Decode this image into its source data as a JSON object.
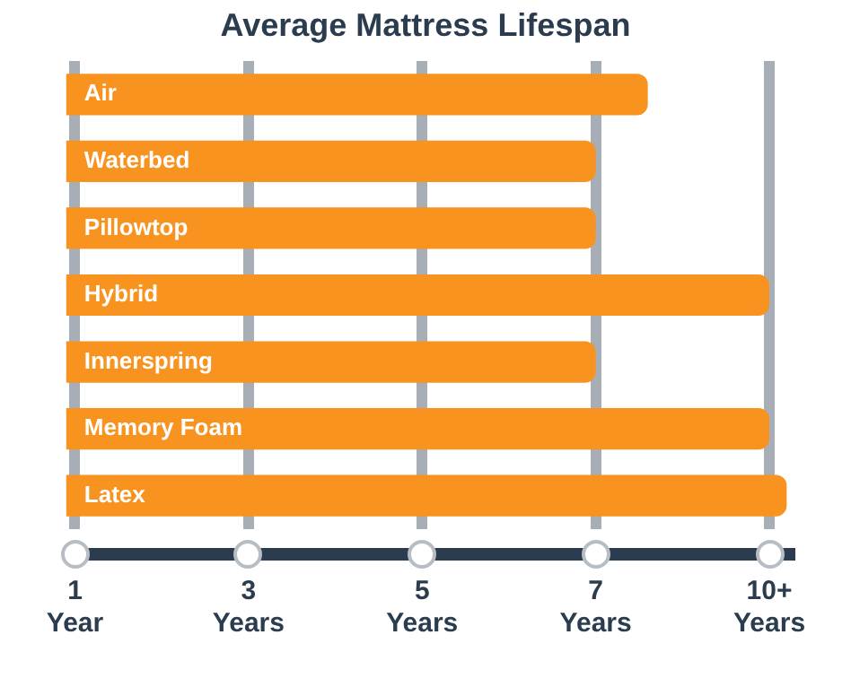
{
  "chart_data": {
    "type": "bar",
    "orientation": "horizontal",
    "title": "Average Mattress Lifespan",
    "categories": [
      "Air",
      "Waterbed",
      "Pillowtop",
      "Hybrid",
      "Innerspring",
      "Memory Foam",
      "Latex"
    ],
    "values": [
      7.6,
      7,
      7,
      9,
      7,
      9,
      9.2
    ],
    "color": "#f7931e",
    "xlim": [
      0.9,
      9.3
    ],
    "xticks": [
      {
        "value": 1,
        "label": "1 Year"
      },
      {
        "value": 3,
        "label": "3 Years"
      },
      {
        "value": 5,
        "label": "5 Years"
      },
      {
        "value": 7,
        "label": "7 Years"
      },
      {
        "value": 9,
        "label": "10+ Years"
      }
    ],
    "grid": "x",
    "legend": false
  }
}
